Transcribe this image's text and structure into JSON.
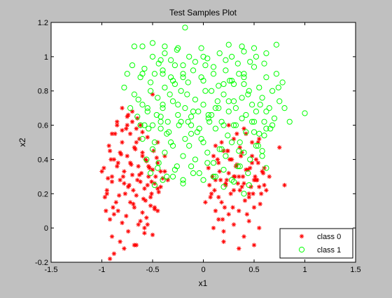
{
  "chart_data": {
    "type": "scatter",
    "title": "Test Samples Plot",
    "xlabel": "x1",
    "ylabel": "x2",
    "xlim": [
      -1.5,
      1.5
    ],
    "ylim": [
      -0.2,
      1.2
    ],
    "xticks": [
      "-1.5",
      "-1",
      "-0.5",
      "0",
      "0.5",
      "1",
      "1.5"
    ],
    "yticks": [
      "-0.2",
      "0",
      "0.2",
      "0.4",
      "0.6",
      "0.8",
      "1",
      "1.2"
    ],
    "grid": false,
    "legend_position": "bottom-right",
    "series": [
      {
        "name": "class 0",
        "marker": "asterisk",
        "color": "#ff0000",
        "x": [
          -0.98,
          -0.95,
          -0.92,
          -0.9,
          -0.88,
          -0.86,
          -0.84,
          -0.82,
          -0.8,
          -0.78,
          -0.77,
          -0.75,
          -0.73,
          -0.72,
          -0.7,
          -0.68,
          -0.66,
          -0.64,
          -0.62,
          -0.6,
          -0.58,
          -0.56,
          -0.54,
          -0.52,
          -0.5,
          -0.48,
          -0.46,
          -0.44,
          -0.42,
          -0.4,
          -0.96,
          -0.93,
          -0.9,
          -0.87,
          -0.85,
          -0.83,
          -0.81,
          -0.79,
          -0.76,
          -0.74,
          -0.71,
          -0.69,
          -0.67,
          -0.65,
          -0.63,
          -0.61,
          -0.59,
          -0.57,
          -0.55,
          -0.53,
          -0.51,
          -0.49,
          -0.47,
          -0.45,
          -1.0,
          -0.97,
          -0.94,
          -0.91,
          -0.89,
          -0.85,
          -0.82,
          -0.78,
          -0.75,
          -0.72,
          -0.69,
          -0.66,
          -0.63,
          -0.6,
          -0.57,
          -0.54,
          -0.51,
          -0.48,
          -0.45,
          -0.42,
          -0.38,
          -0.35,
          -0.92,
          -0.88,
          -0.84,
          -0.8,
          -0.76,
          -0.72,
          -0.68,
          -0.64,
          -0.6,
          -0.56,
          -0.52,
          -0.48,
          -0.95,
          -0.9,
          -0.85,
          -0.8,
          -0.75,
          -0.7,
          -0.65,
          -0.6,
          -0.55,
          -0.9,
          -0.82,
          -0.74,
          -0.66,
          -0.58,
          -0.5,
          -0.45,
          -0.88,
          -0.78,
          -0.68,
          -0.58,
          -0.92,
          -0.62,
          -0.55,
          -0.8,
          -0.74,
          -0.7,
          -0.66,
          -0.62,
          -0.5,
          -0.45,
          -0.38,
          0.05,
          0.08,
          0.1,
          0.12,
          0.15,
          0.18,
          0.2,
          0.22,
          0.25,
          0.28,
          0.3,
          0.32,
          0.35,
          0.38,
          0.4,
          0.42,
          0.45,
          0.48,
          0.5,
          0.52,
          0.55,
          0.58,
          0.6,
          0.06,
          0.09,
          0.12,
          0.16,
          0.19,
          0.23,
          0.26,
          0.29,
          0.33,
          0.36,
          0.39,
          0.43,
          0.46,
          0.49,
          0.53,
          0.56,
          0.59,
          0.62,
          0.02,
          0.07,
          0.11,
          0.14,
          0.17,
          0.21,
          0.24,
          0.27,
          0.31,
          0.34,
          0.37,
          0.41,
          0.44,
          0.47,
          0.51,
          0.54,
          0.57,
          0.65,
          0.1,
          0.15,
          0.2,
          0.25,
          0.3,
          0.35,
          0.4,
          0.45,
          0.5,
          0.55,
          0.12,
          0.18,
          0.24,
          0.3,
          0.36,
          0.42,
          0.48,
          0.54,
          0.15,
          0.22,
          0.3,
          0.38,
          0.45,
          0.52,
          0.6,
          0.25,
          0.33,
          0.4,
          0.48,
          0.55,
          0.75,
          0.8,
          0.2,
          0.35,
          0.5
        ],
        "y": [
          0.35,
          0.22,
          0.45,
          0.3,
          0.4,
          0.15,
          0.38,
          0.28,
          0.5,
          0.33,
          0.2,
          0.42,
          0.25,
          0.55,
          0.31,
          0.47,
          0.19,
          0.36,
          0.27,
          0.44,
          0.23,
          0.39,
          0.3,
          0.18,
          0.34,
          0.26,
          0.41,
          0.21,
          0.33,
          0.29,
          0.1,
          0.48,
          0.27,
          0.55,
          0.36,
          0.19,
          0.43,
          0.3,
          0.58,
          0.24,
          0.37,
          0.14,
          0.46,
          0.28,
          0.52,
          0.32,
          0.17,
          0.4,
          0.25,
          0.35,
          0.2,
          0.45,
          0.3,
          0.23,
          0.33,
          0.18,
          0.29,
          0.4,
          0.12,
          0.6,
          0.44,
          0.26,
          0.65,
          0.38,
          0.22,
          0.5,
          0.31,
          0.42,
          0.16,
          0.36,
          0.27,
          0.12,
          0.38,
          0.24,
          0.33,
          0.28,
          0.05,
          0.08,
          0.1,
          0.03,
          0.07,
          0.15,
          0.12,
          0.02,
          0.09,
          0.06,
          0.13,
          0.11,
          0.2,
          0.55,
          0.62,
          0.57,
          0.6,
          0.68,
          0.64,
          0.56,
          0.53,
          -0.05,
          -0.08,
          -0.02,
          -0.1,
          0.0,
          -0.04,
          0.1,
          -0.15,
          -0.12,
          -0.1,
          -0.03,
          -0.18,
          0.04,
          0.02,
          0.7,
          0.66,
          0.62,
          0.58,
          0.6,
          0.78,
          0.5,
          0.42,
          0.35,
          0.2,
          0.42,
          0.28,
          0.38,
          0.15,
          0.45,
          0.25,
          0.32,
          0.4,
          0.22,
          0.36,
          0.3,
          0.44,
          0.26,
          0.34,
          0.18,
          0.38,
          0.28,
          0.4,
          0.24,
          0.33,
          0.35,
          0.25,
          0.3,
          0.1,
          0.33,
          0.05,
          0.28,
          0.4,
          0.12,
          0.37,
          0.22,
          0.3,
          0.08,
          0.35,
          0.2,
          0.28,
          0.14,
          0.32,
          0.22,
          0.15,
          0.18,
          0.22,
          0.4,
          0.28,
          0.12,
          0.45,
          0.2,
          0.3,
          0.26,
          0.42,
          0.16,
          0.34,
          0.24,
          0.3,
          0.38,
          0.2,
          0.3,
          0.0,
          0.05,
          -0.02,
          0.08,
          0.02,
          0.1,
          -0.05,
          0.04,
          0.12,
          0.0,
          0.48,
          0.5,
          0.45,
          0.52,
          0.47,
          0.55,
          0.42,
          0.5,
          0.18,
          0.26,
          0.3,
          0.24,
          0.2,
          0.28,
          0.25,
          0.6,
          0.55,
          0.58,
          0.5,
          0.52,
          0.47,
          0.25,
          -0.08,
          -0.12,
          -0.1
        ]
      },
      {
        "name": "class 1",
        "marker": "circle",
        "color": "#00ff00",
        "x": [
          -0.78,
          -0.75,
          -0.72,
          -0.7,
          -0.68,
          -0.65,
          -0.62,
          -0.6,
          -0.58,
          -0.55,
          -0.52,
          -0.5,
          -0.48,
          -0.45,
          -0.42,
          -0.4,
          -0.38,
          -0.35,
          -0.32,
          -0.3,
          -0.28,
          -0.25,
          -0.22,
          -0.2,
          -0.18,
          -0.15,
          -0.12,
          -0.1,
          -0.08,
          -0.05,
          -0.02,
          0.0,
          0.02,
          0.05,
          0.08,
          0.1,
          0.12,
          0.15,
          0.18,
          0.2,
          0.22,
          0.25,
          0.28,
          0.3,
          0.32,
          0.35,
          0.38,
          0.4,
          0.42,
          0.45,
          0.48,
          0.5,
          0.52,
          0.55,
          0.58,
          0.6,
          0.62,
          0.65,
          0.68,
          0.7,
          0.72,
          0.75,
          0.78,
          0.8,
          -0.64,
          -0.58,
          -0.52,
          -0.46,
          -0.4,
          -0.34,
          -0.28,
          -0.22,
          -0.16,
          -0.1,
          -0.04,
          0.02,
          0.08,
          0.14,
          0.2,
          0.26,
          0.32,
          0.38,
          0.44,
          0.5,
          0.56,
          0.62,
          0.68,
          0.74,
          -0.6,
          -0.54,
          -0.48,
          -0.42,
          -0.36,
          -0.3,
          -0.24,
          -0.18,
          -0.12,
          -0.06,
          0.0,
          0.06,
          0.12,
          0.18,
          0.24,
          0.3,
          0.36,
          0.42,
          0.48,
          0.54,
          0.6,
          0.66,
          -0.56,
          -0.5,
          -0.44,
          -0.38,
          -0.32,
          -0.26,
          -0.2,
          -0.14,
          -0.08,
          -0.02,
          0.04,
          0.1,
          0.16,
          0.22,
          0.28,
          0.34,
          0.4,
          0.46,
          0.52,
          0.58,
          -0.5,
          -0.44,
          -0.38,
          -0.32,
          -0.26,
          -0.2,
          -0.14,
          -0.08,
          -0.02,
          0.04,
          0.1,
          0.16,
          0.22,
          0.28,
          0.34,
          0.4,
          0.46,
          0.52,
          -0.52,
          -0.45,
          -0.36,
          -0.28,
          -0.2,
          -0.12,
          -0.04,
          0.04,
          0.12,
          0.2,
          0.28,
          0.36,
          0.44,
          -0.48,
          -0.4,
          -0.3,
          -0.2,
          -0.1,
          0.0,
          0.1,
          0.2,
          0.3,
          0.4,
          -0.6,
          -0.4,
          -0.2,
          0.0,
          0.2,
          0.4,
          0.6,
          -0.55,
          -0.42,
          -0.33,
          -0.25,
          -0.15,
          0.05,
          0.15,
          0.25,
          -0.68,
          -0.6,
          -0.5,
          -0.38,
          -0.25,
          -0.18,
          0.0,
          0.25,
          0.38,
          0.5,
          0.62,
          0.72,
          1.0,
          0.85,
          -0.62,
          -0.42,
          -0.12,
          0.35,
          0.45,
          0.58,
          0.62,
          -0.4,
          -0.3,
          0.3,
          0.4,
          0.5,
          0.55,
          0.62
        ],
        "y": [
          0.82,
          0.9,
          0.7,
          0.95,
          0.78,
          0.65,
          0.88,
          0.72,
          0.93,
          0.68,
          0.85,
          0.6,
          0.9,
          0.76,
          0.98,
          0.7,
          0.82,
          0.62,
          0.88,
          0.74,
          0.95,
          0.66,
          0.8,
          0.9,
          0.7,
          0.85,
          0.6,
          0.92,
          0.75,
          0.68,
          0.88,
          0.72,
          0.95,
          0.64,
          0.8,
          0.9,
          0.7,
          0.83,
          0.62,
          0.78,
          0.92,
          0.68,
          0.86,
          0.74,
          0.6,
          0.9,
          0.76,
          0.84,
          0.66,
          0.8,
          0.72,
          0.94,
          0.68,
          0.82,
          0.76,
          0.62,
          0.88,
          0.7,
          0.8,
          0.64,
          0.9,
          0.74,
          0.85,
          0.7,
          0.75,
          0.6,
          0.8,
          0.66,
          0.72,
          0.56,
          0.84,
          0.62,
          0.78,
          0.68,
          0.58,
          0.8,
          0.66,
          0.74,
          0.6,
          0.86,
          0.7,
          0.64,
          0.78,
          0.56,
          0.72,
          0.68,
          0.6,
          0.82,
          0.52,
          0.58,
          0.5,
          0.62,
          0.55,
          0.48,
          0.6,
          0.52,
          0.65,
          0.56,
          0.5,
          0.62,
          0.58,
          0.46,
          0.54,
          0.6,
          0.5,
          0.56,
          0.62,
          0.48,
          0.54,
          0.58,
          0.4,
          0.46,
          0.38,
          0.44,
          0.5,
          0.36,
          0.42,
          0.48,
          0.4,
          0.52,
          0.44,
          0.38,
          0.46,
          0.42,
          0.5,
          0.36,
          0.44,
          0.4,
          0.48,
          0.42,
          1.0,
          0.96,
          1.02,
          0.98,
          1.04,
          0.95,
          1.0,
          0.97,
          1.05,
          0.99,
          0.94,
          1.02,
          0.98,
          1.0,
          0.96,
          1.03,
          0.97,
          1.0,
          0.32,
          0.35,
          0.3,
          0.34,
          0.28,
          0.36,
          0.32,
          0.38,
          0.3,
          0.34,
          0.28,
          0.36,
          0.32,
          0.25,
          0.28,
          0.3,
          0.26,
          0.32,
          0.28,
          0.3,
          0.24,
          0.27,
          0.2,
          0.9,
          0.92,
          0.88,
          0.86,
          0.84,
          0.9,
          0.96,
          0.7,
          0.65,
          0.78,
          0.72,
          0.62,
          0.66,
          0.7,
          0.74,
          1.06,
          1.06,
          1.08,
          1.06,
          1.05,
          1.17,
          1.0,
          1.07,
          1.06,
          1.05,
          1.02,
          1.07,
          0.67,
          0.62,
          0.6,
          0.58,
          0.55,
          0.45,
          0.25,
          0.45,
          0.35,
          0.9,
          0.86,
          0.84,
          0.88,
          0.62,
          0.55,
          0.58
        ]
      }
    ]
  }
}
